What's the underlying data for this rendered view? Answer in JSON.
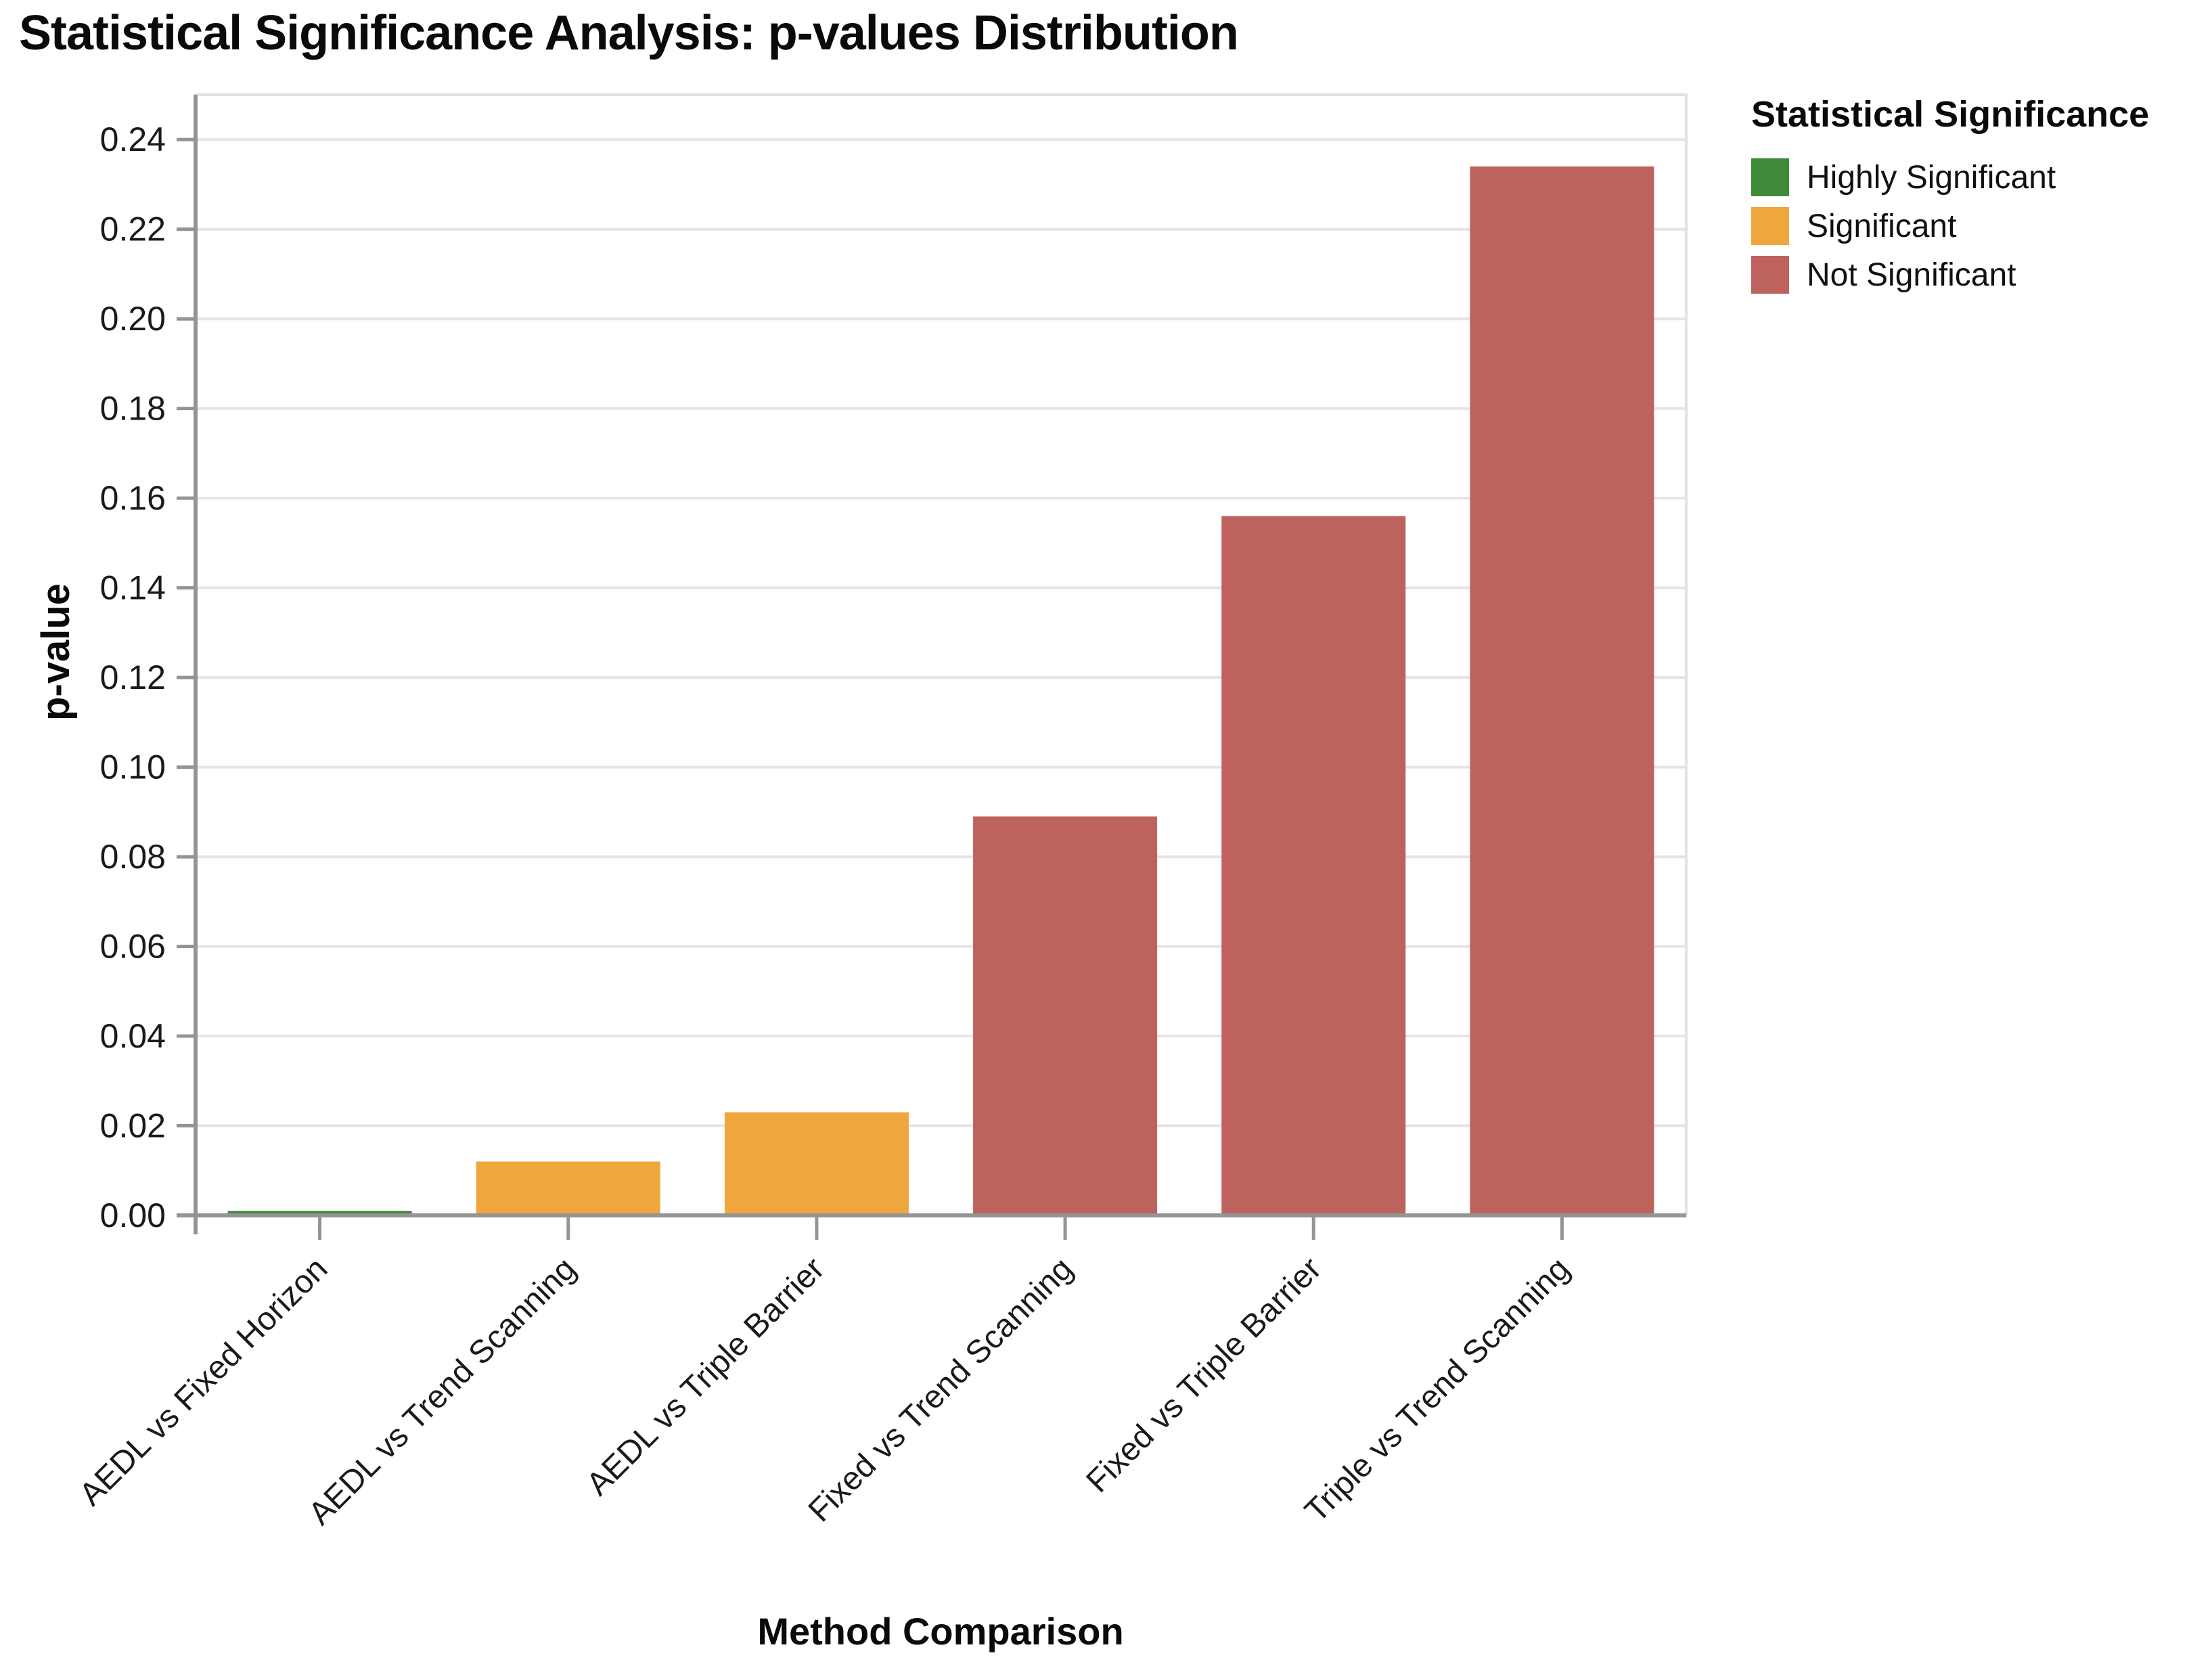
{
  "chart_data": {
    "type": "bar",
    "title": "Statistical Significance Analysis: p-values Distribution",
    "xlabel": "Method Comparison",
    "ylabel": "p-value",
    "categories": [
      "AEDL vs Fixed Horizon",
      "AEDL vs Trend Scanning",
      "AEDL vs Triple Barrier",
      "Fixed vs Trend Scanning",
      "Fixed vs Triple Barrier",
      "Triple vs Trend Scanning"
    ],
    "values": [
      0.001,
      0.012,
      0.023,
      0.089,
      0.156,
      0.234
    ],
    "bar_significance": [
      "Highly Significant",
      "Significant",
      "Significant",
      "Not Significant",
      "Not Significant",
      "Not Significant"
    ],
    "ylim": [
      0,
      0.25
    ],
    "yticks": [
      0,
      0.02,
      0.04,
      0.06,
      0.08,
      0.1,
      0.12,
      0.14,
      0.16,
      0.18,
      0.2,
      0.22,
      0.24
    ],
    "ytick_labels": [
      "0.00",
      "0.02",
      "0.04",
      "0.06",
      "0.08",
      "0.10",
      "0.12",
      "0.14",
      "0.16",
      "0.18",
      "0.20",
      "0.22",
      "0.24"
    ],
    "grid": true,
    "x_label_angle": -45,
    "legend_position": "top-right"
  },
  "legend": {
    "title": "Statistical Significance",
    "items": [
      {
        "label": "Highly Significant",
        "color": "#3F8A38"
      },
      {
        "label": "Significant",
        "color": "#EFA63C"
      },
      {
        "label": "Not Significant",
        "color": "#BE625E"
      }
    ]
  },
  "style_colors": {
    "grid": "#E4E4E4",
    "plot_border": "#E2E2E2",
    "axis": "#949494",
    "tick_text": "#1a1a1a"
  }
}
